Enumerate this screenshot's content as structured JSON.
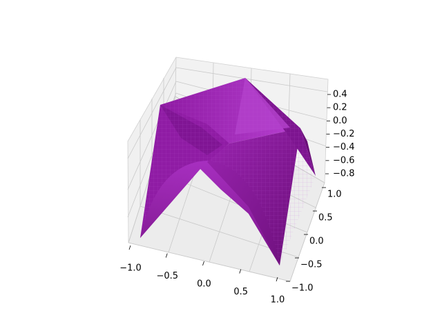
{
  "chart_data": {
    "type": "surface3d",
    "function": "z = -max(x^2, y^2) * ... (pyramidal saddle surface)",
    "surface_color": "#8b1a9b",
    "edge_color": "#9e2bb0",
    "pane_color": "#f2f2f2",
    "grid": true,
    "x": {
      "ticks": [
        -1.0,
        -0.5,
        0.0,
        0.5,
        1.0
      ],
      "tick_labels": [
        "−1.0",
        "−0.5",
        "0.0",
        "0.5",
        "1.0"
      ],
      "range": [
        -1.0,
        1.0
      ]
    },
    "y": {
      "ticks": [
        -1.0,
        -0.5,
        0.0,
        0.5,
        1.0
      ],
      "tick_labels": [
        "−1.0",
        "−0.5",
        "0.0",
        "0.5",
        "1.0"
      ],
      "range": [
        -1.0,
        1.0
      ]
    },
    "z": {
      "ticks": [
        0.4,
        0.2,
        0.0,
        -0.2,
        -0.4,
        -0.6,
        -0.8
      ],
      "tick_labels": [
        "0.4",
        "0.2",
        "0.0",
        "−0.2",
        "−0.4",
        "−0.6",
        "−0.8"
      ],
      "range": [
        -0.85,
        0.5
      ]
    },
    "title": "",
    "xlabel": "",
    "ylabel": "",
    "zlabel": ""
  }
}
